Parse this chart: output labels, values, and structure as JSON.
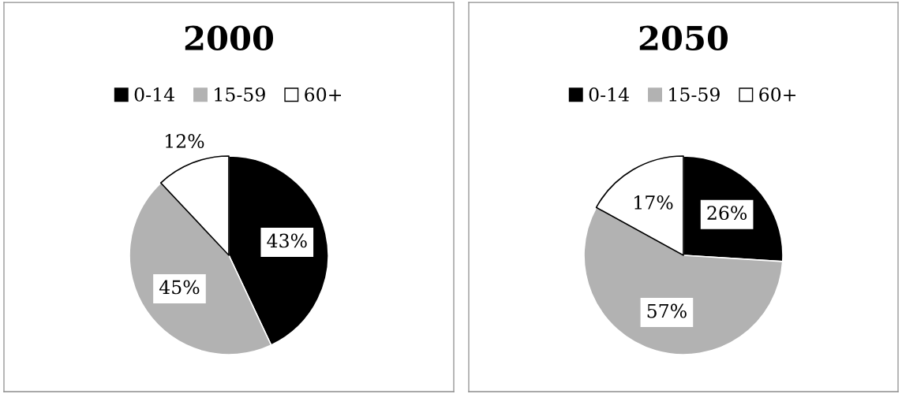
{
  "chart_data": [
    {
      "type": "pie",
      "title": "2000",
      "categories": [
        "0-14",
        "15-59",
        "60+"
      ],
      "values": [
        43,
        45,
        12
      ],
      "colors": [
        "#000000",
        "#b2b2b2",
        "#ffffff"
      ],
      "value_labels": [
        "43%",
        "45%",
        "12%"
      ],
      "legend": "top"
    },
    {
      "type": "pie",
      "title": "2050",
      "categories": [
        "0-14",
        "15-59",
        "60+"
      ],
      "values": [
        26,
        57,
        17
      ],
      "colors": [
        "#000000",
        "#b2b2b2",
        "#ffffff"
      ],
      "value_labels": [
        "26%",
        "57%",
        "17%"
      ],
      "legend": "top"
    }
  ]
}
